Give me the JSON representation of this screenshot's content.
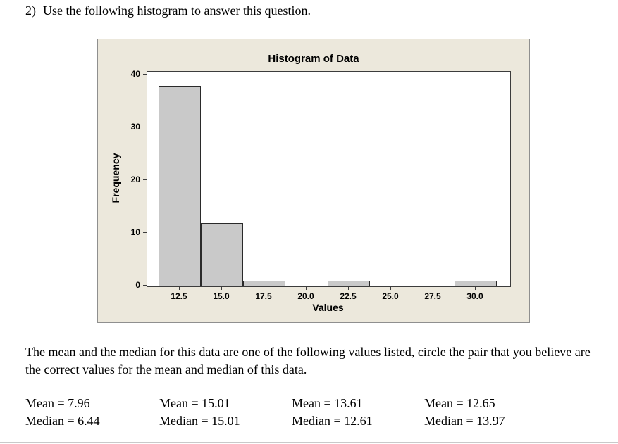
{
  "question": {
    "number": "2)",
    "text": "Use the following histogram to answer this question."
  },
  "chart_data": {
    "type": "bar",
    "title": "Histogram of Data",
    "xlabel": "Values",
    "ylabel": "Frequency",
    "categories": [
      "12.5",
      "15.0",
      "17.5",
      "20.0",
      "22.5",
      "25.0",
      "27.5",
      "30.0"
    ],
    "values": [
      38,
      12,
      1,
      0,
      1,
      0,
      0,
      1
    ],
    "yticks": [
      0,
      10,
      20,
      30,
      40
    ],
    "ylim": [
      0,
      40
    ],
    "bin_width": 2.5,
    "grid": false,
    "legend": false,
    "bar_color": "#c9c9c9",
    "bar_border": "#2a2a2a",
    "figure_bg": "#ece8dc",
    "plot_bg": "#ffffff"
  },
  "instructions": "The mean and the median for this data are one of the following values listed, circle the pair that you believe are the correct values for the mean and median of this data.",
  "options": [
    {
      "mean": "Mean = 7.96",
      "median": "Median = 6.44"
    },
    {
      "mean": "Mean = 15.01",
      "median": "Median = 15.01"
    },
    {
      "mean": "Mean = 13.61",
      "median": "Median = 12.61"
    },
    {
      "mean": "Mean = 12.65",
      "median": "Median = 13.97"
    }
  ]
}
